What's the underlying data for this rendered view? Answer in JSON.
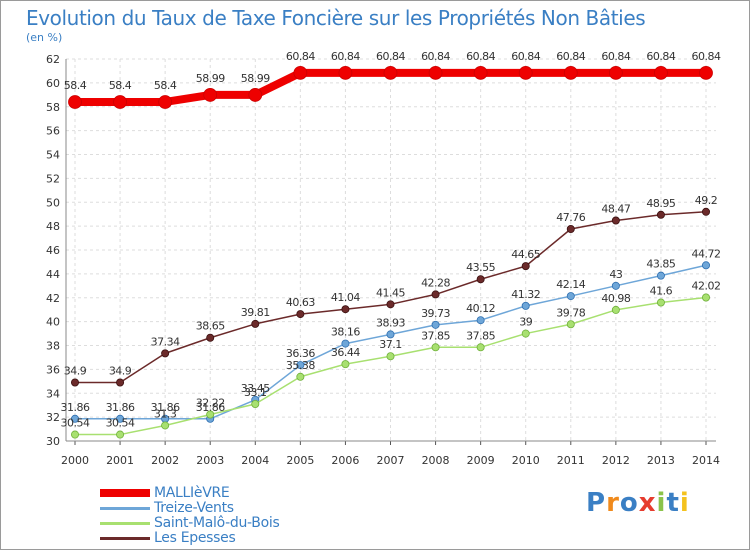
{
  "title": "Evolution du Taux de Taxe Foncière sur les Propriétés Non Bâties",
  "unit": "(en %)",
  "logo": {
    "text": "Proxiti",
    "colors": [
      "#3a7fc4",
      "#f08a1c",
      "#3a7fc4",
      "#e63c2e",
      "#8bc34a",
      "#3a7fc4",
      "#f4c21e"
    ]
  },
  "chart_data": {
    "type": "line",
    "title": "Evolution du Taux de Taxe Foncière sur les Propriétés Non Bâties",
    "ylabel": "(en %)",
    "xlabel": "",
    "ylim": [
      30,
      62
    ],
    "y_ticks": [
      30,
      32,
      34,
      36,
      38,
      40,
      42,
      44,
      46,
      48,
      50,
      52,
      54,
      56,
      58,
      60,
      62
    ],
    "grid": true,
    "legend_position": "bottom-left",
    "x": [
      "2000",
      "2001",
      "2002",
      "2003",
      "2004",
      "2005",
      "2006",
      "2007",
      "2008",
      "2009",
      "2010",
      "2011",
      "2012",
      "2013",
      "2014"
    ],
    "series": [
      {
        "name": "MALLIèVRE",
        "color": "#ee0000",
        "values": [
          58.4,
          58.4,
          58.4,
          58.99,
          58.99,
          60.84,
          60.84,
          60.84,
          60.84,
          60.84,
          60.84,
          60.84,
          60.84,
          60.84,
          60.84
        ],
        "labels": [
          "58.4",
          "58.4",
          "58.4",
          "58.99",
          "58.99",
          "60.84",
          "60.84",
          "60.84",
          "60.84",
          "60.84",
          "60.84",
          "60.84",
          "60.84",
          "60.84",
          "60.84"
        ]
      },
      {
        "name": "Treize-Vents",
        "color": "#6ea6d8",
        "values": [
          31.86,
          31.86,
          31.86,
          31.86,
          33.45,
          36.36,
          38.16,
          38.93,
          39.73,
          40.12,
          41.32,
          42.14,
          43,
          43.85,
          44.72
        ],
        "labels": [
          "31.86",
          "31.86",
          "31.86",
          "31.86",
          "33.45",
          "36.36",
          "38.16",
          "38.93",
          "39.73",
          "40.12",
          "41.32",
          "42.14",
          "43",
          "43.85",
          "44.72"
        ]
      },
      {
        "name": "Saint-Malô-du-Bois",
        "color": "#a8e070",
        "values": [
          30.54,
          30.54,
          31.3,
          32.22,
          33.1,
          35.38,
          36.44,
          37.1,
          37.85,
          37.85,
          39,
          39.78,
          40.98,
          41.6,
          42.02
        ],
        "labels": [
          "30.54",
          "30.54",
          "31.3",
          "32.22",
          "33.1",
          "35.38",
          "36.44",
          "37.1",
          "37.85",
          "37.85",
          "39",
          "39.78",
          "40.98",
          "41.6",
          "42.02"
        ]
      },
      {
        "name": "Les Epesses",
        "color": "#6b2a2a",
        "values": [
          34.9,
          34.9,
          37.34,
          38.65,
          39.81,
          40.63,
          41.04,
          41.45,
          42.28,
          43.55,
          44.65,
          47.76,
          48.47,
          48.95,
          49.2
        ],
        "labels": [
          "34.9",
          "34.9",
          "37.34",
          "38.65",
          "39.81",
          "40.63",
          "41.04",
          "41.45",
          "42.28",
          "43.55",
          "44.65",
          "47.76",
          "48.47",
          "48.95",
          "49.2"
        ]
      }
    ]
  }
}
